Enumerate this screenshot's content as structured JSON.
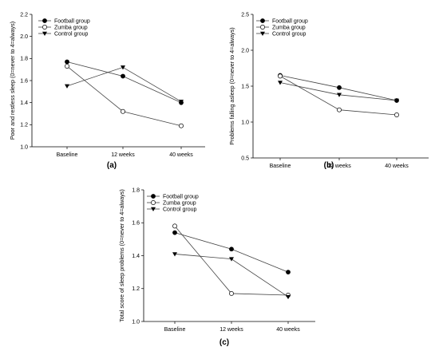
{
  "chart_data": [
    {
      "type": "line",
      "panel_label": "(a)",
      "categories": [
        "Baseline",
        "12 weeks",
        "40 weeks"
      ],
      "ylabel": "Poor and restless sleep (0=never to 4=always)",
      "ylim": [
        1.0,
        2.2
      ],
      "yticks": [
        "1.0",
        "1.2",
        "1.4",
        "1.6",
        "1.8",
        "2.0",
        "2.2"
      ],
      "legend_position": "top-left",
      "series": [
        {
          "name": "Football group",
          "marker": "filled-circle",
          "values": [
            1.77,
            1.64,
            1.4
          ]
        },
        {
          "name": "Zumba group",
          "marker": "open-circle",
          "values": [
            1.73,
            1.32,
            1.19
          ]
        },
        {
          "name": "Control group",
          "marker": "filled-triangle-down",
          "values": [
            1.55,
            1.72,
            1.41
          ]
        }
      ]
    },
    {
      "type": "line",
      "panel_label": "(b)",
      "categories": [
        "Baseline",
        "12 weeks",
        "40 weeks"
      ],
      "ylabel": "Problems falling asleep (0=never to 4=always)",
      "ylim": [
        0.5,
        2.5
      ],
      "yticks": [
        "0.5",
        "1.0",
        "1.5",
        "2.0",
        "2.5"
      ],
      "legend_position": "top-left",
      "series": [
        {
          "name": "Football group",
          "marker": "filled-circle",
          "values": [
            1.65,
            1.48,
            1.3
          ]
        },
        {
          "name": "Zumba group",
          "marker": "open-circle",
          "values": [
            1.64,
            1.17,
            1.1
          ]
        },
        {
          "name": "Control group",
          "marker": "filled-triangle-down",
          "values": [
            1.55,
            1.38,
            1.3
          ]
        }
      ]
    },
    {
      "type": "line",
      "panel_label": "(c)",
      "categories": [
        "Baseline",
        "12 weeks",
        "40 weeks"
      ],
      "ylabel": "Total score of sleep problems (0=never to 4=always)",
      "ylim": [
        1.0,
        1.8
      ],
      "yticks": [
        "1.0",
        "1.2",
        "1.4",
        "1.6",
        "1.8"
      ],
      "legend_position": "top-left",
      "series": [
        {
          "name": "Football group",
          "marker": "filled-circle",
          "values": [
            1.54,
            1.44,
            1.3
          ]
        },
        {
          "name": "Zumba group",
          "marker": "open-circle",
          "values": [
            1.58,
            1.17,
            1.16
          ]
        },
        {
          "name": "Control group",
          "marker": "filled-triangle-down",
          "values": [
            1.41,
            1.38,
            1.15
          ]
        }
      ]
    }
  ]
}
